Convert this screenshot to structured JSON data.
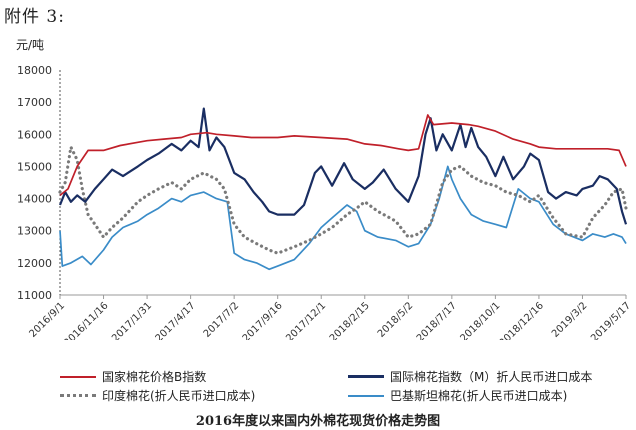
{
  "header": {
    "attachment_label": "附件 3:"
  },
  "caption": "2016年度以来国内外棉花现货价格走势图",
  "chart_data": {
    "type": "line",
    "title": "2016年度以来国内外棉花现货价格走势图",
    "ylabel": "元/吨",
    "xlabel": "",
    "ylim": [
      11000,
      18000
    ],
    "yticks": [
      11000,
      12000,
      13000,
      14000,
      15000,
      16000,
      17000,
      18000
    ],
    "xlim": [
      "2016/9/1",
      "2019/5/17"
    ],
    "xtick_labels": [
      "2016/9/1",
      "2016/11/16",
      "2017/1/31",
      "2017/4/17",
      "2017/7/2",
      "2017/9/16",
      "2017/12/1",
      "2018/2/15",
      "2018/5/2",
      "2018/7/17",
      "2018/10/1",
      "2018/12/16",
      "2019/3/2",
      "2019/5/17"
    ],
    "grid": false,
    "legend_position": "bottom",
    "series": [
      {
        "name": "国家棉花价格B指数",
        "color": "#c0202a",
        "style": "solid",
        "points": [
          [
            "2016/9/1",
            14100
          ],
          [
            "2016/9/15",
            14300
          ],
          [
            "2016/10/1",
            15000
          ],
          [
            "2016/10/20",
            15500
          ],
          [
            "2016/11/16",
            15500
          ],
          [
            "2016/12/15",
            15650
          ],
          [
            "2017/1/15",
            15750
          ],
          [
            "2017/1/31",
            15800
          ],
          [
            "2017/3/1",
            15850
          ],
          [
            "2017/4/1",
            15900
          ],
          [
            "2017/4/17",
            16000
          ],
          [
            "2017/5/15",
            16050
          ],
          [
            "2017/6/1",
            16000
          ],
          [
            "2017/7/2",
            15950
          ],
          [
            "2017/8/1",
            15900
          ],
          [
            "2017/9/16",
            15900
          ],
          [
            "2017/10/15",
            15950
          ],
          [
            "2017/12/1",
            15900
          ],
          [
            "2018/1/15",
            15850
          ],
          [
            "2018/2/15",
            15700
          ],
          [
            "2018/3/15",
            15650
          ],
          [
            "2018/4/15",
            15550
          ],
          [
            "2018/5/2",
            15500
          ],
          [
            "2018/5/20",
            15550
          ],
          [
            "2018/6/5",
            16600
          ],
          [
            "2018/6/15",
            16300
          ],
          [
            "2018/7/17",
            16350
          ],
          [
            "2018/8/15",
            16300
          ],
          [
            "2018/9/1",
            16250
          ],
          [
            "2018/10/1",
            16100
          ],
          [
            "2018/11/1",
            15850
          ],
          [
            "2018/12/1",
            15700
          ],
          [
            "2018/12/16",
            15600
          ],
          [
            "2019/1/15",
            15550
          ],
          [
            "2019/3/2",
            15550
          ],
          [
            "2019/4/15",
            15550
          ],
          [
            "2019/5/5",
            15500
          ],
          [
            "2019/5/17",
            15000
          ]
        ]
      },
      {
        "name": "国际棉花指数（M）折人民币进口成本",
        "color": "#1a2e62",
        "style": "solid",
        "points": [
          [
            "2016/9/1",
            13800
          ],
          [
            "2016/9/10",
            14200
          ],
          [
            "2016/9/20",
            13900
          ],
          [
            "2016/10/1",
            14100
          ],
          [
            "2016/10/15",
            13900
          ],
          [
            "2016/11/1",
            14300
          ],
          [
            "2016/11/16",
            14600
          ],
          [
            "2016/12/1",
            14900
          ],
          [
            "2016/12/20",
            14700
          ],
          [
            "2017/1/15",
            15000
          ],
          [
            "2017/1/31",
            15200
          ],
          [
            "2017/2/20",
            15400
          ],
          [
            "2017/3/15",
            15700
          ],
          [
            "2017/4/1",
            15500
          ],
          [
            "2017/4/17",
            15800
          ],
          [
            "2017/5/1",
            15600
          ],
          [
            "2017/5/10",
            16800
          ],
          [
            "2017/5/20",
            15500
          ],
          [
            "2017/6/1",
            15900
          ],
          [
            "2017/6/15",
            15600
          ],
          [
            "2017/7/2",
            14800
          ],
          [
            "2017/7/20",
            14600
          ],
          [
            "2017/8/5",
            14200
          ],
          [
            "2017/8/20",
            13900
          ],
          [
            "2017/9/1",
            13600
          ],
          [
            "2017/9/16",
            13500
          ],
          [
            "2017/10/15",
            13500
          ],
          [
            "2017/11/1",
            13800
          ],
          [
            "2017/11/20",
            14800
          ],
          [
            "2017/12/1",
            15000
          ],
          [
            "2017/12/20",
            14400
          ],
          [
            "2018/1/10",
            15100
          ],
          [
            "2018/1/25",
            14600
          ],
          [
            "2018/2/15",
            14300
          ],
          [
            "2018/3/1",
            14500
          ],
          [
            "2018/3/20",
            14900
          ],
          [
            "2018/4/10",
            14300
          ],
          [
            "2018/5/2",
            13900
          ],
          [
            "2018/5/20",
            14700
          ],
          [
            "2018/6/1",
            16000
          ],
          [
            "2018/6/10",
            16500
          ],
          [
            "2018/6/20",
            15500
          ],
          [
            "2018/7/1",
            16000
          ],
          [
            "2018/7/17",
            15500
          ],
          [
            "2018/8/1",
            16300
          ],
          [
            "2018/8/10",
            15600
          ],
          [
            "2018/8/20",
            16200
          ],
          [
            "2018/9/1",
            15600
          ],
          [
            "2018/9/15",
            15300
          ],
          [
            "2018/10/1",
            14700
          ],
          [
            "2018/10/15",
            15300
          ],
          [
            "2018/11/1",
            14600
          ],
          [
            "2018/11/20",
            15000
          ],
          [
            "2018/12/1",
            15400
          ],
          [
            "2018/12/16",
            15200
          ],
          [
            "2019/1/1",
            14200
          ],
          [
            "2019/1/15",
            14000
          ],
          [
            "2019/2/1",
            14200
          ],
          [
            "2019/2/20",
            14100
          ],
          [
            "2019/3/2",
            14300
          ],
          [
            "2019/3/20",
            14400
          ],
          [
            "2019/4/1",
            14700
          ],
          [
            "2019/4/15",
            14600
          ],
          [
            "2019/5/1",
            14300
          ],
          [
            "2019/5/10",
            13600
          ],
          [
            "2019/5/17",
            13200
          ]
        ]
      },
      {
        "name": "印度棉花(折人民币进口成本)",
        "color": "#7a7a7a",
        "style": "dotted",
        "points": [
          [
            "2016/9/1",
            14200
          ],
          [
            "2016/9/10",
            14500
          ],
          [
            "2016/9/20",
            15600
          ],
          [
            "2016/10/1",
            15200
          ],
          [
            "2016/10/10",
            14300
          ],
          [
            "2016/10/20",
            13500
          ],
          [
            "2016/11/1",
            13200
          ],
          [
            "2016/11/16",
            12800
          ],
          [
            "2016/12/1",
            13100
          ],
          [
            "2016/12/20",
            13400
          ],
          [
            "2017/1/15",
            13900
          ],
          [
            "2017/1/31",
            14100
          ],
          [
            "2017/2/20",
            14300
          ],
          [
            "2017/3/15",
            14500
          ],
          [
            "2017/4/1",
            14300
          ],
          [
            "2017/4/17",
            14600
          ],
          [
            "2017/5/10",
            14800
          ],
          [
            "2017/6/1",
            14600
          ],
          [
            "2017/6/15",
            14300
          ],
          [
            "2017/7/2",
            13200
          ],
          [
            "2017/7/20",
            12800
          ],
          [
            "2017/8/10",
            12600
          ],
          [
            "2017/9/1",
            12400
          ],
          [
            "2017/9/16",
            12300
          ],
          [
            "2017/10/15",
            12500
          ],
          [
            "2017/11/10",
            12700
          ],
          [
            "2017/12/1",
            12900
          ],
          [
            "2017/12/20",
            13100
          ],
          [
            "2018/1/15",
            13500
          ],
          [
            "2018/2/1",
            13700
          ],
          [
            "2018/2/15",
            13900
          ],
          [
            "2018/3/10",
            13600
          ],
          [
            "2018/4/10",
            13300
          ],
          [
            "2018/5/2",
            12800
          ],
          [
            "2018/5/20",
            12900
          ],
          [
            "2018/6/10",
            13200
          ],
          [
            "2018/7/1",
            14500
          ],
          [
            "2018/7/17",
            14900
          ],
          [
            "2018/8/1",
            15000
          ],
          [
            "2018/8/20",
            14700
          ],
          [
            "2018/9/10",
            14500
          ],
          [
            "2018/10/1",
            14400
          ],
          [
            "2018/10/20",
            14200
          ],
          [
            "2018/11/10",
            14100
          ],
          [
            "2018/12/1",
            13900
          ],
          [
            "2018/12/16",
            14100
          ],
          [
            "2019/1/10",
            13400
          ],
          [
            "2019/2/1",
            12900
          ],
          [
            "2019/3/2",
            12800
          ],
          [
            "2019/3/20",
            13400
          ],
          [
            "2019/4/10",
            13800
          ],
          [
            "2019/4/25",
            14200
          ],
          [
            "2019/5/10",
            14300
          ],
          [
            "2019/5/17",
            13700
          ]
        ]
      },
      {
        "name": "巴基斯坦棉花(折人民币进口成本)",
        "color": "#3a8cc8",
        "style": "solid",
        "points": [
          [
            "2016/9/1",
            13000
          ],
          [
            "2016/9/5",
            11900
          ],
          [
            "2016/9/20",
            12000
          ],
          [
            "2016/10/10",
            12200
          ],
          [
            "2016/10/25",
            11950
          ],
          [
            "2016/11/16",
            12400
          ],
          [
            "2016/12/1",
            12800
          ],
          [
            "2016/12/20",
            13100
          ],
          [
            "2017/1/15",
            13300
          ],
          [
            "2017/1/31",
            13500
          ],
          [
            "2017/2/20",
            13700
          ],
          [
            "2017/3/15",
            14000
          ],
          [
            "2017/4/1",
            13900
          ],
          [
            "2017/4/17",
            14100
          ],
          [
            "2017/5/10",
            14200
          ],
          [
            "2017/6/1",
            14000
          ],
          [
            "2017/6/20",
            13900
          ],
          [
            "2017/7/2",
            12300
          ],
          [
            "2017/7/20",
            12100
          ],
          [
            "2017/8/10",
            12000
          ],
          [
            "2017/9/1",
            11800
          ],
          [
            "2017/9/16",
            11900
          ],
          [
            "2017/10/15",
            12100
          ],
          [
            "2017/11/10",
            12600
          ],
          [
            "2017/12/1",
            13100
          ],
          [
            "2017/12/20",
            13400
          ],
          [
            "2018/1/15",
            13800
          ],
          [
            "2018/2/1",
            13600
          ],
          [
            "2018/2/15",
            13000
          ],
          [
            "2018/3/10",
            12800
          ],
          [
            "2018/4/10",
            12700
          ],
          [
            "2018/5/2",
            12500
          ],
          [
            "2018/5/20",
            12600
          ],
          [
            "2018/6/10",
            13200
          ],
          [
            "2018/6/25",
            14000
          ],
          [
            "2018/7/10",
            15000
          ],
          [
            "2018/7/17",
            14600
          ],
          [
            "2018/8/1",
            14000
          ],
          [
            "2018/8/20",
            13500
          ],
          [
            "2018/9/10",
            13300
          ],
          [
            "2018/10/1",
            13200
          ],
          [
            "2018/10/20",
            13100
          ],
          [
            "2018/11/10",
            14300
          ],
          [
            "2018/12/1",
            14000
          ],
          [
            "2018/12/16",
            13900
          ],
          [
            "2019/1/10",
            13200
          ],
          [
            "2019/2/1",
            12900
          ],
          [
            "2019/3/2",
            12700
          ],
          [
            "2019/3/20",
            12900
          ],
          [
            "2019/4/10",
            12800
          ],
          [
            "2019/4/25",
            12900
          ],
          [
            "2019/5/10",
            12800
          ],
          [
            "2019/5/17",
            12600
          ]
        ]
      }
    ]
  }
}
